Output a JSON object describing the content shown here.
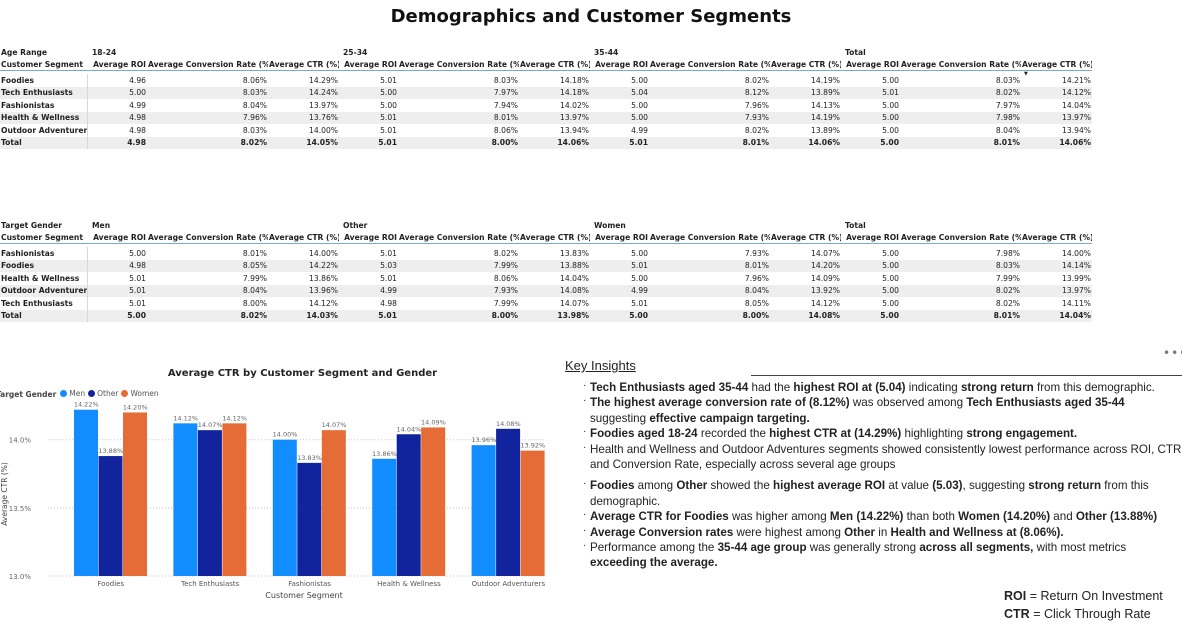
{
  "title": "Demographics and Customer Segments",
  "age_table": {
    "row_header": "Age Range",
    "sub_header": "Customer Segment",
    "groups": [
      "18-24",
      "25-34",
      "35-44",
      "Total"
    ],
    "metrics": [
      "Average ROI",
      "Average Conversion Rate (%)",
      "Average CTR (%)"
    ],
    "rows": [
      {
        "label": "Foodies",
        "cells": [
          "4.96",
          "8.06%",
          "14.29%",
          "5.01",
          "8.03%",
          "14.18%",
          "5.00",
          "8.02%",
          "14.19%",
          "5.00",
          "8.03%",
          "14.21%"
        ]
      },
      {
        "label": "Tech Enthusiasts",
        "cells": [
          "5.00",
          "8.03%",
          "14.24%",
          "5.00",
          "7.97%",
          "14.18%",
          "5.04",
          "8.12%",
          "13.89%",
          "5.01",
          "8.02%",
          "14.12%"
        ]
      },
      {
        "label": "Fashionistas",
        "cells": [
          "4.99",
          "8.04%",
          "13.97%",
          "5.00",
          "7.94%",
          "14.02%",
          "5.00",
          "7.96%",
          "14.13%",
          "5.00",
          "7.97%",
          "14.04%"
        ]
      },
      {
        "label": "Health & Wellness",
        "cells": [
          "4.98",
          "7.96%",
          "13.76%",
          "5.01",
          "8.01%",
          "13.97%",
          "5.00",
          "7.93%",
          "14.19%",
          "5.00",
          "7.98%",
          "13.97%"
        ]
      },
      {
        "label": "Outdoor Adventurers",
        "cells": [
          "4.98",
          "8.03%",
          "14.00%",
          "5.01",
          "8.06%",
          "13.94%",
          "4.99",
          "8.02%",
          "13.89%",
          "5.00",
          "8.04%",
          "13.94%"
        ]
      },
      {
        "label": "Total",
        "cells": [
          "4.98",
          "8.02%",
          "14.05%",
          "5.01",
          "8.00%",
          "14.06%",
          "5.01",
          "8.01%",
          "14.06%",
          "5.00",
          "8.01%",
          "14.06%"
        ]
      }
    ]
  },
  "gender_table": {
    "row_header": "Target Gender",
    "sub_header": "Customer Segment",
    "groups": [
      "Men",
      "Other",
      "Women",
      "Total"
    ],
    "metrics": [
      "Average ROI",
      "Average Conversion Rate (%)",
      "Average CTR (%)"
    ],
    "rows": [
      {
        "label": "Fashionistas",
        "cells": [
          "5.00",
          "8.01%",
          "14.00%",
          "5.01",
          "8.02%",
          "13.83%",
          "5.00",
          "7.93%",
          "14.07%",
          "5.00",
          "7.98%",
          "14.00%"
        ]
      },
      {
        "label": "Foodies",
        "cells": [
          "4.98",
          "8.05%",
          "14.22%",
          "5.03",
          "7.99%",
          "13.88%",
          "5.01",
          "8.01%",
          "14.20%",
          "5.00",
          "8.03%",
          "14.14%"
        ]
      },
      {
        "label": "Health & Wellness",
        "cells": [
          "5.01",
          "7.99%",
          "13.86%",
          "5.01",
          "8.06%",
          "14.04%",
          "5.00",
          "7.96%",
          "14.09%",
          "5.00",
          "7.99%",
          "13.99%"
        ]
      },
      {
        "label": "Outdoor Adventurers",
        "cells": [
          "5.01",
          "8.04%",
          "13.96%",
          "4.99",
          "7.93%",
          "14.08%",
          "4.99",
          "8.04%",
          "13.92%",
          "5.00",
          "8.02%",
          "13.97%"
        ]
      },
      {
        "label": "Tech Enthusiasts",
        "cells": [
          "5.01",
          "8.00%",
          "14.12%",
          "4.98",
          "7.99%",
          "14.07%",
          "5.01",
          "8.05%",
          "14.12%",
          "5.00",
          "8.02%",
          "14.11%"
        ]
      },
      {
        "label": "Total",
        "cells": [
          "5.00",
          "8.02%",
          "14.03%",
          "5.01",
          "8.00%",
          "13.98%",
          "5.00",
          "8.00%",
          "14.08%",
          "5.00",
          "8.01%",
          "14.04%"
        ]
      }
    ]
  },
  "chart_data": {
    "type": "bar",
    "title": "Average CTR by Customer Segment and Gender",
    "legend_title": "Target Gender",
    "legend_position": "top-left",
    "xlabel": "Customer Segment",
    "ylabel": "Average CTR (%)",
    "ylim": [
      13.0,
      14.35
    ],
    "yticks": [
      "13.0%",
      "13.5%",
      "14.0%"
    ],
    "ytick_values": [
      13.0,
      13.5,
      14.0
    ],
    "grid": true,
    "categories": [
      "Foodies",
      "Tech Enthusiasts",
      "Fashionistas",
      "Health & Wellness",
      "Outdoor Adventurers"
    ],
    "series": [
      {
        "name": "Men",
        "color": "#118DFF",
        "values": [
          14.22,
          14.12,
          14.0,
          13.86,
          13.96
        ],
        "labels": [
          "14.22%",
          "14.12%",
          "14.00%",
          "13.86%",
          "13.96%"
        ]
      },
      {
        "name": "Other",
        "color": "#12239E",
        "values": [
          13.88,
          14.07,
          13.83,
          14.04,
          14.08
        ],
        "labels": [
          "13.88%",
          "14.07%",
          "13.83%",
          "14.04%",
          "14.08%"
        ]
      },
      {
        "name": "Women",
        "color": "#E66C37",
        "values": [
          14.2,
          14.12,
          14.07,
          14.09,
          13.92
        ],
        "labels": [
          "14.20%",
          "14.12%",
          "14.07%",
          "14.09%",
          "13.92%"
        ]
      }
    ]
  },
  "insights": {
    "title": "Key Insights",
    "more_icon": "more-options-icon",
    "items": [
      [
        {
          "t": "Tech Enthusiasts aged 35-44",
          "b": true
        },
        {
          "t": " had the "
        },
        {
          "t": "highest ROI at (5.04)",
          "b": true
        },
        {
          "t": " indicating "
        },
        {
          "t": "strong return",
          "b": true
        },
        {
          "t": " from this demographic."
        }
      ],
      [
        {
          "t": "The highest average conversion rate of (8.12%)",
          "b": true
        },
        {
          "t": " was observed among "
        },
        {
          "t": "Tech Enthusiasts aged 35-44",
          "b": true
        },
        {
          "t": " suggesting "
        },
        {
          "t": "effective campaign targeting.",
          "b": true
        }
      ],
      [
        {
          "t": "Foodies aged 18-24",
          "b": true
        },
        {
          "t": " recorded the "
        },
        {
          "t": "highest CTR at (14.29%)",
          "b": true
        },
        {
          "t": " highlighting "
        },
        {
          "t": "strong engagement.",
          "b": true
        }
      ],
      [
        {
          "t": "Health and Wellness and Outdoor Adventures segments showed consistently lowest performance across ROI, CTR and Conversion Rate, especially across several age groups"
        }
      ],
      [
        {
          "t": "Foodies",
          "b": true
        },
        {
          "t": " among "
        },
        {
          "t": "Other",
          "b": true
        },
        {
          "t": " showed the "
        },
        {
          "t": "highest average ROI",
          "b": true
        },
        {
          "t": " at value "
        },
        {
          "t": "(5.03)",
          "b": true
        },
        {
          "t": ", suggesting "
        },
        {
          "t": "strong return",
          "b": true
        },
        {
          "t": " from this demographic."
        }
      ],
      [
        {
          "t": "Average CTR for Foodies",
          "b": true
        },
        {
          "t": " was higher among "
        },
        {
          "t": "Men (14.22%)",
          "b": true
        },
        {
          "t": " than both "
        },
        {
          "t": "Women (14.20%)",
          "b": true
        },
        {
          "t": " and "
        },
        {
          "t": "Other",
          "b": true
        },
        {
          "t": " "
        },
        {
          "t": "(13.88%)",
          "b": true
        }
      ],
      [
        {
          "t": "Average Conversion rates",
          "b": true
        },
        {
          "t": " were highest among "
        },
        {
          "t": "Other",
          "b": true
        },
        {
          "t": " in "
        },
        {
          "t": "Health and Wellness at (8.06%).",
          "b": true
        }
      ],
      [
        {
          "t": "Performance among the "
        },
        {
          "t": "35-44 age group",
          "b": true
        },
        {
          "t": " was generally strong "
        },
        {
          "t": "across all segments,",
          "b": true
        },
        {
          "t": " with most metrics "
        },
        {
          "t": "exceeding the average.",
          "b": true
        }
      ]
    ]
  },
  "abbreviations": [
    {
      "key": "ROI",
      "value": "= Return On Investment"
    },
    {
      "key": "CTR",
      "value": "= Click Through Rate"
    }
  ]
}
